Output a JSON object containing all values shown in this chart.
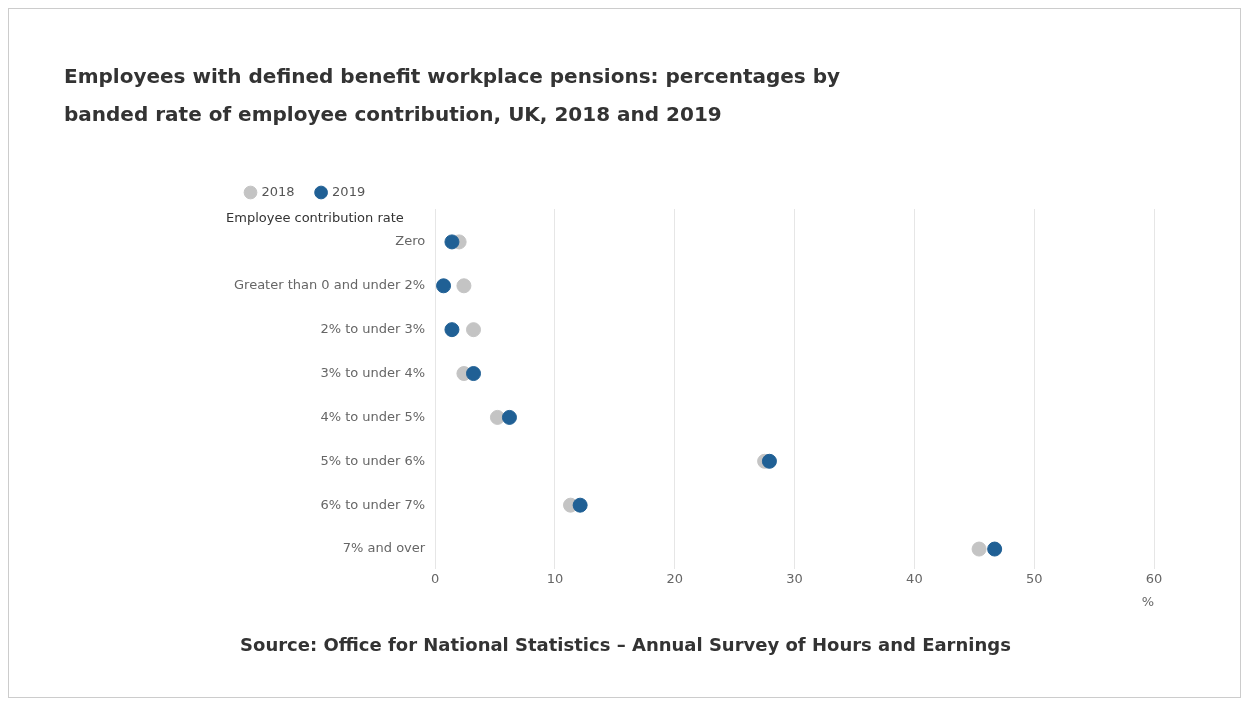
{
  "chart_data": {
    "type": "scatter",
    "orientation": "horizontal",
    "title": "Employees with defined benefit workplace pensions: percentages by banded rate of employee contribution, UK, 2018 and 2019",
    "xlabel": "%",
    "ylabel": "Employee contribution rate",
    "categories": [
      "Zero",
      "Greater than 0 and under 2%",
      "2% to under 3%",
      "3% to under 4%",
      "4% to under 5%",
      "5% to under 6%",
      "6% to under 7%",
      "7% and over"
    ],
    "series": [
      {
        "name": "2018",
        "color": "#c4c4c4",
        "values": [
          2.0,
          2.4,
          3.2,
          2.4,
          5.2,
          27.5,
          11.3,
          45.4
        ]
      },
      {
        "name": "2019",
        "color": "#206095",
        "values": [
          1.4,
          0.7,
          1.4,
          3.2,
          6.2,
          27.9,
          12.1,
          46.7
        ]
      }
    ],
    "xlim": [
      0,
      60
    ],
    "xticks": [
      0,
      10,
      20,
      30,
      40,
      50,
      60
    ],
    "grid": "x",
    "legend": "top left",
    "marker": "circle",
    "annotations": [
      "Source: Office for National Statistics – Annual Survey of Hours and Earnings"
    ]
  }
}
